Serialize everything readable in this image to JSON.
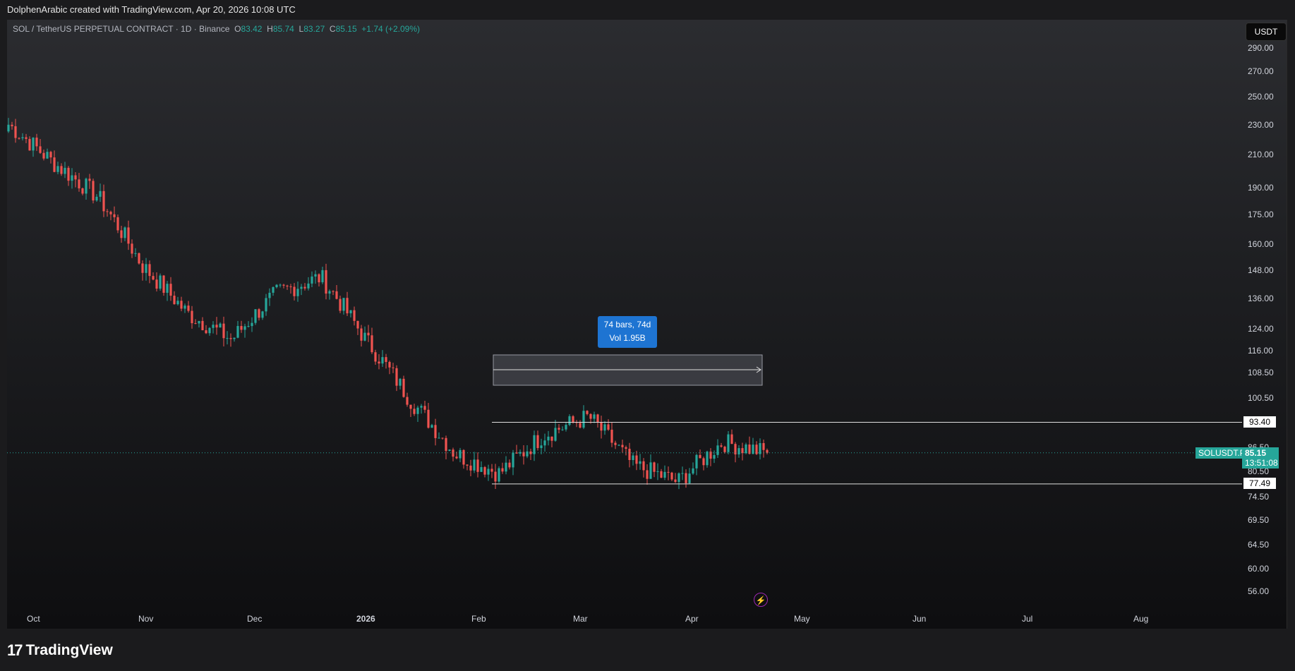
{
  "header": {
    "attribution": "DolphenArabic created with TradingView.com, Apr 20, 2026 10:08 UTC"
  },
  "legend": {
    "symbol": "SOL / TetherUS PERPETUAL CONTRACT · 1D · Binance",
    "o_label": "O",
    "o_value": "83.42",
    "h_label": "H",
    "h_value": "85.74",
    "l_label": "L",
    "l_value": "83.27",
    "c_label": "C",
    "c_value": "85.15",
    "change": "+1.74 (+2.09%)"
  },
  "currency_button": "USDT",
  "price_axis": [
    "290.00",
    "270.00",
    "250.00",
    "230.00",
    "210.00",
    "190.00",
    "175.00",
    "160.00",
    "148.00",
    "136.00",
    "124.00",
    "116.00",
    "108.50",
    "100.50",
    "86.50",
    "80.50",
    "74.50",
    "69.50",
    "64.50",
    "60.00",
    "56.00"
  ],
  "time_axis": [
    "Oct",
    "Nov",
    "Dec",
    "2026",
    "Feb",
    "Mar",
    "Apr",
    "May",
    "Jun",
    "Jul",
    "Aug"
  ],
  "levels": {
    "upper": "93.40",
    "lower": "77.49"
  },
  "last_price": {
    "symbol_tag": "SOLUSDT.P",
    "price": "85.15",
    "countdown": "13:51:08"
  },
  "measure": {
    "line1": "74 bars, 74d",
    "line2": "Vol 1.95B"
  },
  "colors": {
    "up": "#26a69a",
    "down": "#ef5350",
    "measure": "#1e74d2"
  },
  "footer": {
    "brand": "TradingView"
  },
  "chart_data": {
    "type": "candlestick",
    "title": "SOL / TetherUS PERPETUAL CONTRACT · 1D · Binance",
    "xlabel": "",
    "ylabel": "",
    "scale": "log",
    "ylim": [
      54,
      310
    ],
    "key_prices": [
      230,
      205,
      185,
      150,
      130,
      120,
      138,
      145,
      120,
      100,
      85,
      80,
      90,
      95,
      82,
      78,
      88,
      85.15
    ],
    "horizontal_levels": [
      93.4,
      77.49
    ],
    "last_close": 85.15
  }
}
